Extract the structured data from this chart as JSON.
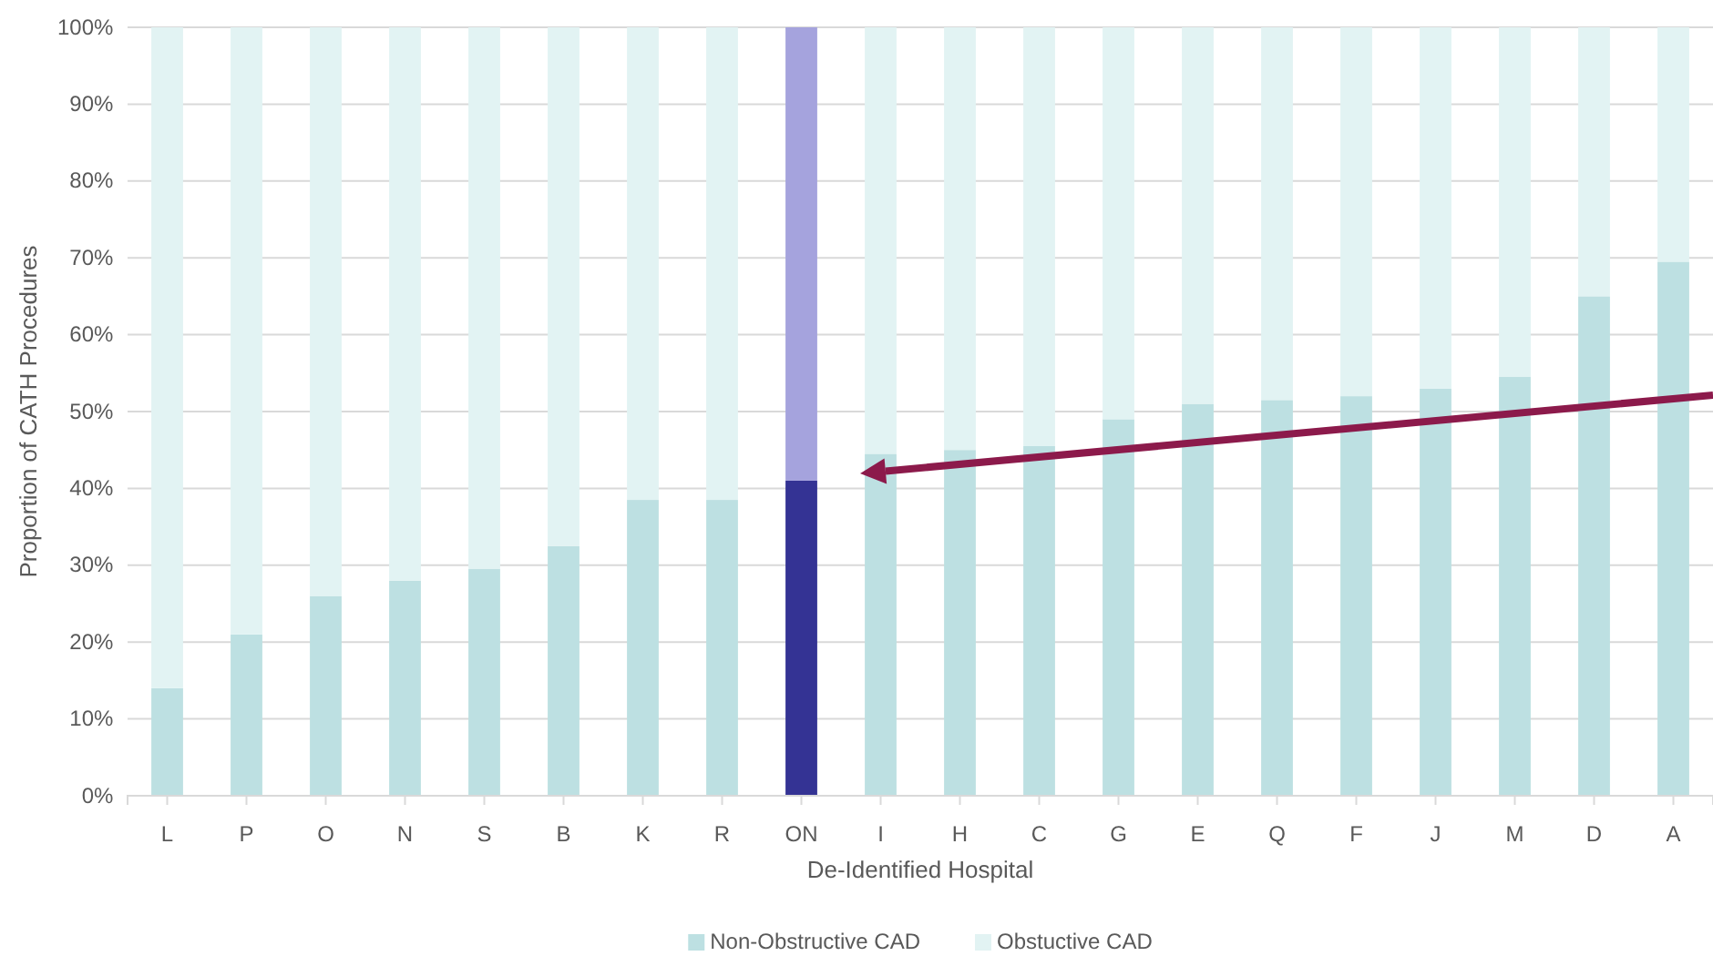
{
  "chart_data": {
    "type": "bar",
    "stacked": true,
    "xlabel": "De-Identified Hospital",
    "ylabel": "Proportion of CATH Procedures",
    "categories": [
      "L",
      "P",
      "O",
      "N",
      "S",
      "B",
      "K",
      "R",
      "ON",
      "I",
      "H",
      "C",
      "G",
      "E",
      "Q",
      "F",
      "J",
      "M",
      "D",
      "A"
    ],
    "series": [
      {
        "name": "Non-Obstructive CAD",
        "color": "#bde0e2",
        "colors": [
          "#bde0e2",
          "#bde0e2",
          "#bde0e2",
          "#bde0e2",
          "#bde0e2",
          "#bde0e2",
          "#bde0e2",
          "#bde0e2",
          "#343394",
          "#bde0e2",
          "#bde0e2",
          "#bde0e2",
          "#bde0e2",
          "#bde0e2",
          "#bde0e2",
          "#bde0e2",
          "#bde0e2",
          "#bde0e2",
          "#bde0e2",
          "#bde0e2"
        ],
        "values": [
          14,
          21,
          26,
          28,
          29.5,
          32.5,
          38.5,
          38.5,
          41,
          44.5,
          45,
          45.5,
          49,
          51,
          51.5,
          52,
          53,
          54.5,
          65,
          69.5
        ]
      },
      {
        "name": "Obstuctive CAD",
        "color": "#e2f3f3",
        "colors": [
          "#e2f3f3",
          "#e2f3f3",
          "#e2f3f3",
          "#e2f3f3",
          "#e2f3f3",
          "#e2f3f3",
          "#e2f3f3",
          "#e2f3f3",
          "#a5a3dd",
          "#e2f3f3",
          "#e2f3f3",
          "#e2f3f3",
          "#e2f3f3",
          "#e2f3f3",
          "#e2f3f3",
          "#e2f3f3",
          "#e2f3f3",
          "#e2f3f3",
          "#e2f3f3",
          "#e2f3f3"
        ],
        "values": [
          86,
          79,
          74,
          72,
          70.5,
          67.5,
          61.5,
          61.5,
          59,
          55.5,
          55,
          54.5,
          51,
          49,
          48.5,
          48,
          47,
          45.5,
          35,
          30.5
        ]
      }
    ],
    "ylim": [
      0,
      100
    ],
    "yticks": [
      {
        "value": 0,
        "label": "0%"
      },
      {
        "value": 10,
        "label": "10%"
      },
      {
        "value": 20,
        "label": "20%"
      },
      {
        "value": 30,
        "label": "30%"
      },
      {
        "value": 40,
        "label": "40%"
      },
      {
        "value": 50,
        "label": "50%"
      },
      {
        "value": 60,
        "label": "60%"
      },
      {
        "value": 70,
        "label": "70%"
      },
      {
        "value": 80,
        "label": "80%"
      },
      {
        "value": 90,
        "label": "90%"
      },
      {
        "value": 100,
        "label": "100%"
      }
    ],
    "grid": "y",
    "legend": "bottom"
  }
}
